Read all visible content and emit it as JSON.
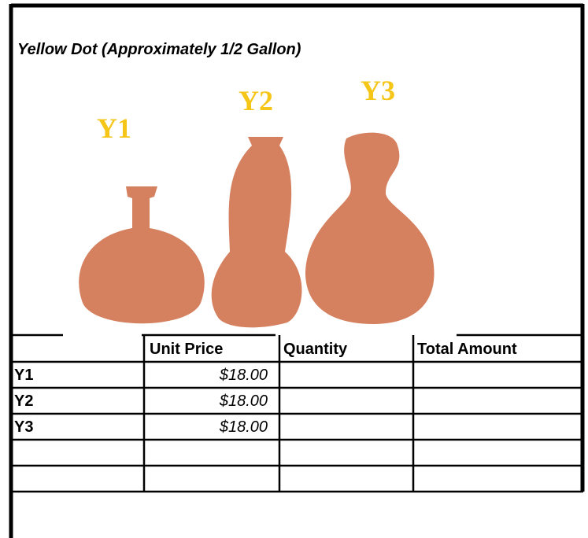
{
  "title": "Yellow Dot (Approximately 1/2 Gallon)",
  "image": {
    "labels": [
      "Y1",
      "Y2",
      "Y3"
    ]
  },
  "table": {
    "headers": [
      "Unit Price",
      "Quantity",
      "Total Amount"
    ],
    "rows": [
      [
        "Y1",
        "$18.00"
      ],
      [
        "Y2",
        "$18.00"
      ],
      [
        "Y3",
        "$18.00"
      ]
    ]
  }
}
